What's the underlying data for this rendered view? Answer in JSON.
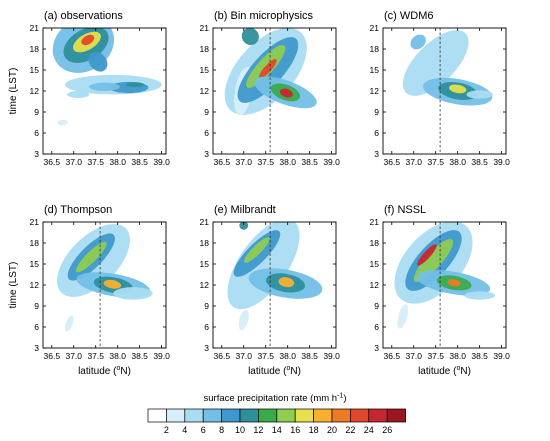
{
  "figure": {
    "ylabel": "time (LST)",
    "xlabel_prefix": "latitude (",
    "xlabel_sup": "o",
    "xlabel_suffix": "N)",
    "colorbar_title": "surface precipitation rate (mm h",
    "colorbar_title_sup": "-1",
    "colorbar_title_end": ")"
  },
  "chart_data": {
    "type": "heatmap",
    "xlim": [
      36.3,
      39.1
    ],
    "ylim": [
      3,
      21
    ],
    "xticks": [
      "36.5",
      "37.0",
      "37.5",
      "38.0",
      "38.5",
      "39.0"
    ],
    "yticks": [
      "3",
      "6",
      "9",
      "12",
      "15",
      "18",
      "21"
    ],
    "reference_line_latitude": 37.6,
    "colorbar": {
      "ticks": [
        "2",
        "4",
        "6",
        "8",
        "10",
        "12",
        "14",
        "16",
        "18",
        "20",
        "22",
        "24",
        "26"
      ],
      "colors": [
        "#ffffff",
        "#d6eefa",
        "#a9dcf2",
        "#73bfe6",
        "#3f98cb",
        "#2f8f9b",
        "#3aab4a",
        "#8fcc52",
        "#e6e04a",
        "#f7b030",
        "#ef7a26",
        "#e2472b",
        "#c8262e",
        "#9a1623"
      ]
    },
    "panels": [
      {
        "title": "(a) observations",
        "ref_line": false,
        "xlabel": false,
        "ylabel": true,
        "blobs": [
          {
            "x": 37.22,
            "y": 18.6,
            "a": 0.6,
            "b": 4.6,
            "rot": 58,
            "level": 3
          },
          {
            "x": 37.28,
            "y": 18.6,
            "a": 0.35,
            "b": 3.5,
            "rot": 60,
            "level": 5
          },
          {
            "x": 37.3,
            "y": 19.0,
            "a": 0.18,
            "b": 2.2,
            "rot": 60,
            "level": 8
          },
          {
            "x": 37.32,
            "y": 19.3,
            "a": 0.1,
            "b": 1.0,
            "rot": 60,
            "level": 11
          },
          {
            "x": 37.55,
            "y": 16.2,
            "a": 0.25,
            "b": 1.2,
            "rot": 50,
            "level": 4
          },
          {
            "x": 37.9,
            "y": 12.9,
            "a": 1.1,
            "b": 1.4,
            "rot": 0,
            "level": 2
          },
          {
            "x": 38.25,
            "y": 12.5,
            "a": 0.45,
            "b": 0.8,
            "rot": 0,
            "level": 4
          },
          {
            "x": 38.4,
            "y": 12.9,
            "a": 0.2,
            "b": 0.35,
            "rot": 0,
            "level": 5
          },
          {
            "x": 37.7,
            "y": 12.6,
            "a": 0.35,
            "b": 0.6,
            "rot": 0,
            "level": 3
          },
          {
            "x": 37.1,
            "y": 11.5,
            "a": 0.25,
            "b": 0.5,
            "rot": 0,
            "level": 2
          },
          {
            "x": 36.75,
            "y": 7.5,
            "a": 0.12,
            "b": 0.4,
            "rot": 0,
            "level": 1
          }
        ]
      },
      {
        "title": "(b) Bin microphysics",
        "ref_line": true,
        "xlabel": false,
        "ylabel": false,
        "blobs": [
          {
            "x": 37.5,
            "y": 14.8,
            "a": 0.65,
            "b": 7.5,
            "rot": 42,
            "level": 2
          },
          {
            "x": 37.0,
            "y": 12.0,
            "a": 0.2,
            "b": 3.5,
            "rot": 10,
            "level": 1
          },
          {
            "x": 37.55,
            "y": 15.0,
            "a": 0.35,
            "b": 6.0,
            "rot": 42,
            "level": 4
          },
          {
            "x": 37.5,
            "y": 15.5,
            "a": 0.18,
            "b": 4.0,
            "rot": 42,
            "level": 7
          },
          {
            "x": 37.55,
            "y": 15.2,
            "a": 0.08,
            "b": 1.8,
            "rot": 42,
            "level": 11
          },
          {
            "x": 37.95,
            "y": 11.8,
            "a": 0.75,
            "b": 1.7,
            "rot": 20,
            "level": 3
          },
          {
            "x": 37.95,
            "y": 11.8,
            "a": 0.35,
            "b": 1.1,
            "rot": 20,
            "level": 6
          },
          {
            "x": 37.97,
            "y": 11.7,
            "a": 0.15,
            "b": 0.6,
            "rot": 20,
            "level": 12
          },
          {
            "x": 37.15,
            "y": 19.8,
            "a": 0.2,
            "b": 1.2,
            "rot": 50,
            "level": 5
          }
        ]
      },
      {
        "title": "(c) WDM6",
        "ref_line": true,
        "xlabel": false,
        "ylabel": false,
        "blobs": [
          {
            "x": 37.5,
            "y": 16.0,
            "a": 0.45,
            "b": 6.0,
            "rot": 45,
            "level": 2
          },
          {
            "x": 38.0,
            "y": 11.9,
            "a": 0.8,
            "b": 1.8,
            "rot": 10,
            "level": 3
          },
          {
            "x": 38.0,
            "y": 12.0,
            "a": 0.45,
            "b": 1.2,
            "rot": 10,
            "level": 5
          },
          {
            "x": 38.0,
            "y": 12.3,
            "a": 0.2,
            "b": 0.6,
            "rot": 10,
            "level": 8
          },
          {
            "x": 37.1,
            "y": 19.0,
            "a": 0.15,
            "b": 1.2,
            "rot": 50,
            "level": 3
          },
          {
            "x": 38.5,
            "y": 11.5,
            "a": 0.3,
            "b": 0.6,
            "rot": 0,
            "level": 2
          }
        ]
      },
      {
        "title": "(d) Thompson",
        "ref_line": true,
        "xlabel": true,
        "ylabel": true,
        "blobs": [
          {
            "x": 37.45,
            "y": 15.5,
            "a": 0.55,
            "b": 6.5,
            "rot": 45,
            "level": 2
          },
          {
            "x": 37.4,
            "y": 16.0,
            "a": 0.25,
            "b": 4.5,
            "rot": 45,
            "level": 4
          },
          {
            "x": 37.4,
            "y": 16.0,
            "a": 0.12,
            "b": 3.0,
            "rot": 45,
            "level": 7
          },
          {
            "x": 37.9,
            "y": 12.0,
            "a": 0.85,
            "b": 1.6,
            "rot": 10,
            "level": 3
          },
          {
            "x": 37.9,
            "y": 12.0,
            "a": 0.45,
            "b": 1.1,
            "rot": 10,
            "level": 5
          },
          {
            "x": 37.88,
            "y": 12.1,
            "a": 0.2,
            "b": 0.6,
            "rot": 10,
            "level": 9
          },
          {
            "x": 38.35,
            "y": 10.8,
            "a": 0.45,
            "b": 0.9,
            "rot": 0,
            "level": 2
          },
          {
            "x": 36.9,
            "y": 6.5,
            "a": 0.08,
            "b": 1.2,
            "rot": 20,
            "level": 1
          }
        ]
      },
      {
        "title": "(e) Milbrandt",
        "ref_line": true,
        "xlabel": true,
        "ylabel": false,
        "blobs": [
          {
            "x": 37.45,
            "y": 15.0,
            "a": 0.55,
            "b": 7.5,
            "rot": 35,
            "level": 2
          },
          {
            "x": 37.3,
            "y": 16.5,
            "a": 0.22,
            "b": 4.5,
            "rot": 45,
            "level": 4
          },
          {
            "x": 37.3,
            "y": 17.0,
            "a": 0.1,
            "b": 2.5,
            "rot": 45,
            "level": 7
          },
          {
            "x": 37.95,
            "y": 12.2,
            "a": 0.85,
            "b": 2.0,
            "rot": 10,
            "level": 3
          },
          {
            "x": 37.95,
            "y": 12.3,
            "a": 0.45,
            "b": 1.3,
            "rot": 10,
            "level": 5
          },
          {
            "x": 37.97,
            "y": 12.4,
            "a": 0.18,
            "b": 0.7,
            "rot": 10,
            "level": 9
          },
          {
            "x": 37.0,
            "y": 20.5,
            "a": 0.1,
            "b": 0.6,
            "rot": 0,
            "level": 5
          },
          {
            "x": 37.0,
            "y": 7.0,
            "a": 0.1,
            "b": 1.5,
            "rot": 15,
            "level": 1
          }
        ]
      },
      {
        "title": "(f) NSSL",
        "ref_line": true,
        "xlabel": true,
        "ylabel": false,
        "blobs": [
          {
            "x": 37.45,
            "y": 15.2,
            "a": 0.65,
            "b": 7.0,
            "rot": 42,
            "level": 2
          },
          {
            "x": 37.45,
            "y": 15.5,
            "a": 0.35,
            "b": 5.5,
            "rot": 42,
            "level": 4
          },
          {
            "x": 37.45,
            "y": 15.5,
            "a": 0.18,
            "b": 4.0,
            "rot": 42,
            "level": 7
          },
          {
            "x": 37.3,
            "y": 16.3,
            "a": 0.08,
            "b": 2.0,
            "rot": 42,
            "level": 12
          },
          {
            "x": 37.9,
            "y": 12.3,
            "a": 0.85,
            "b": 1.6,
            "rot": 10,
            "level": 3
          },
          {
            "x": 37.92,
            "y": 12.3,
            "a": 0.4,
            "b": 1.0,
            "rot": 10,
            "level": 6
          },
          {
            "x": 37.92,
            "y": 12.3,
            "a": 0.15,
            "b": 0.5,
            "rot": 10,
            "level": 10
          },
          {
            "x": 36.75,
            "y": 7.5,
            "a": 0.1,
            "b": 1.8,
            "rot": 15,
            "level": 1
          },
          {
            "x": 38.5,
            "y": 10.5,
            "a": 0.35,
            "b": 0.6,
            "rot": 0,
            "level": 2
          }
        ]
      }
    ]
  }
}
